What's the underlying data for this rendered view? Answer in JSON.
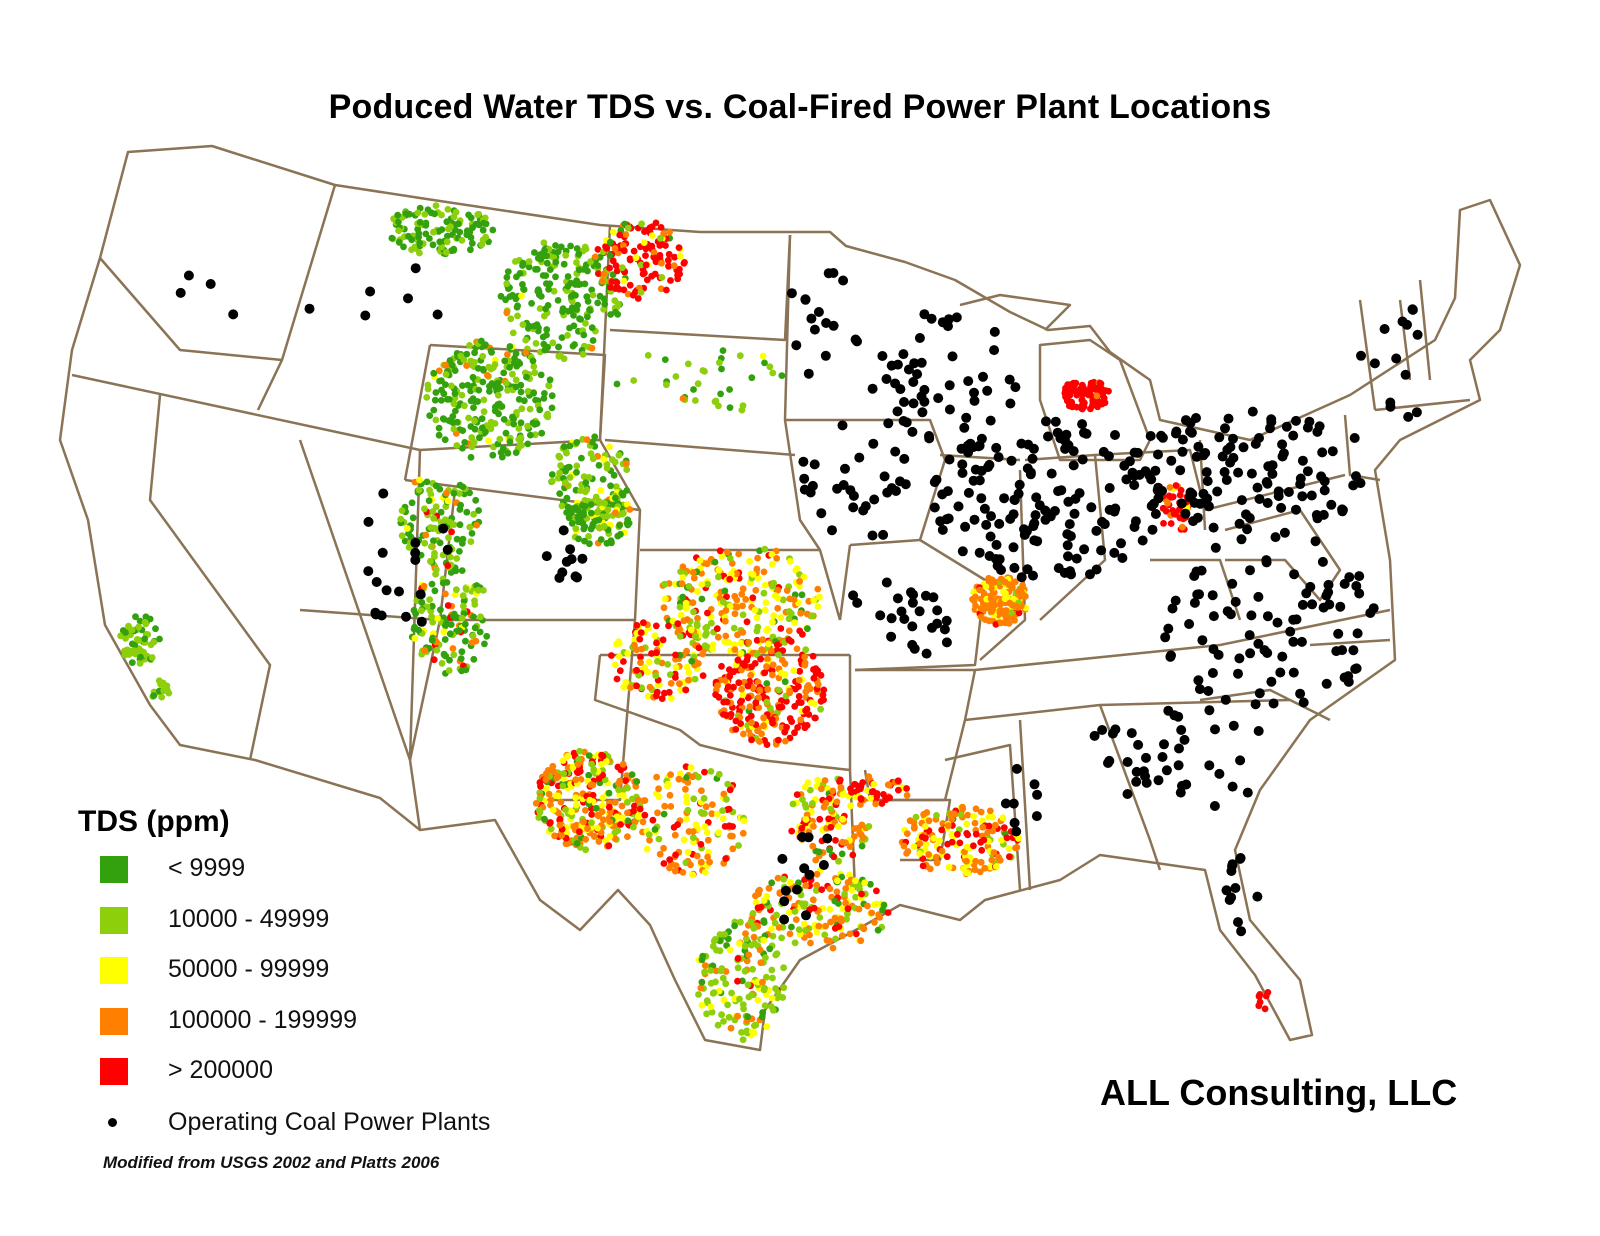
{
  "title": "Poduced Water TDS vs. Coal-Fired Power Plant Locations",
  "legend": {
    "title": "TDS (ppm)",
    "items": [
      {
        "label": "< 9999",
        "color": "#33a10d"
      },
      {
        "label": "10000 - 49999",
        "color": "#8ccf0a"
      },
      {
        "label": "50000 - 99999",
        "color": "#ffff00"
      },
      {
        "label": "100000 - 199999",
        "color": "#ff8000"
      },
      {
        "label": "> 200000",
        "color": "#ff0000"
      }
    ],
    "plants_label": "Operating Coal Power Plants",
    "plants_color": "#000000"
  },
  "source": "Modified from USGS 2002 and Platts 2006",
  "credit": "ALL Consulting, LLC",
  "colors": {
    "state_border": "#8b7355",
    "background": "#ffffff"
  },
  "chart_data": {
    "type": "scatter",
    "title": "Poduced Water TDS vs. Coal-Fired Power Plant Locations",
    "description": "Map of contiguous United States with state boundaries; colored points show produced water total dissolved solids (TDS) sample locations; black dots show operating coal power plants.",
    "legend_position": "bottom-left",
    "series": [
      {
        "name": "< 9999",
        "color": "#33a10d",
        "regions": [
          "Montana (north-central)",
          "Wyoming",
          "Utah/Colorado (Uinta/Piceance)",
          "Colorado (NW)",
          "San Joaquin (CA)"
        ]
      },
      {
        "name": "10000 - 49999",
        "color": "#8ccf0a",
        "regions": [
          "Wyoming",
          "Colorado",
          "Kansas",
          "South Texas",
          "California coast",
          "New Mexico (San Juan)"
        ]
      },
      {
        "name": "50000 - 99999",
        "color": "#ffff00",
        "regions": [
          "Kansas",
          "Texas Gulf Coast",
          "Permian Basin",
          "Illinois Basin"
        ]
      },
      {
        "name": "100000 - 199999",
        "color": "#ff8000",
        "regions": [
          "Oklahoma",
          "Illinois Basin",
          "Louisiana",
          "Permian Basin",
          "Texas Gulf Coast"
        ]
      },
      {
        "name": "> 200000",
        "color": "#ff0000",
        "regions": [
          "Williston Basin (ND)",
          "Oklahoma (central)",
          "Michigan Basin",
          "Permian Basin",
          "Appalachian (PA/WV/OH)",
          "South Florida"
        ]
      },
      {
        "name": "Operating Coal Power Plants",
        "color": "#000000",
        "regions": [
          "Concentrated east of the Mississippi: Ohio Valley, Illinois, Indiana, Pennsylvania, Carolinas, Wisconsin, Michigan",
          "Sparse in the West"
        ]
      }
    ]
  }
}
